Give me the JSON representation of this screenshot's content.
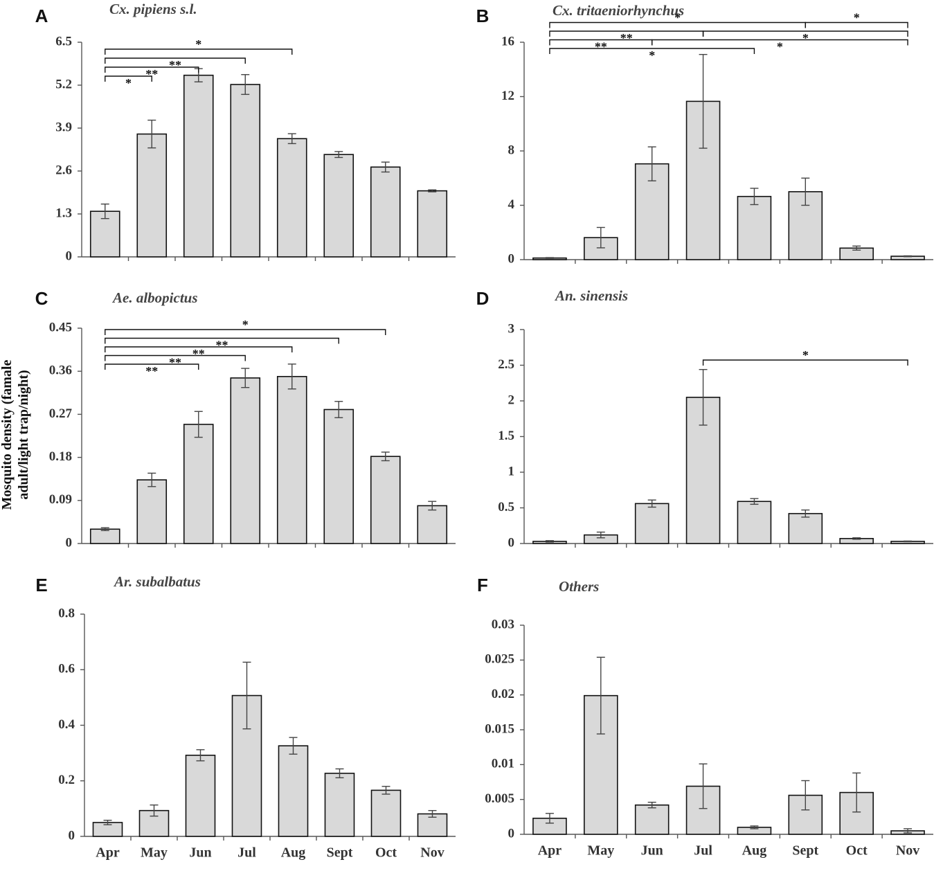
{
  "figure": {
    "y_axis_title_line1": "Mosquito density (famale",
    "y_axis_title_line2": "adult/light trap/night)"
  },
  "chart_data": [
    {
      "panel": "A",
      "title": "Cx. pipiens s.l.",
      "type": "bar",
      "categories": [
        "Apr",
        "May",
        "Jun",
        "Jul",
        "Aug",
        "Sept",
        "Oct",
        "Nov"
      ],
      "values": [
        1.38,
        3.72,
        5.5,
        5.22,
        3.58,
        3.1,
        2.72,
        2.0
      ],
      "errors": [
        0.22,
        0.42,
        0.2,
        0.3,
        0.15,
        0.09,
        0.15,
        0.03
      ],
      "yticks": [
        "0",
        "1.3",
        "2.6",
        "3.9",
        "5.2",
        "6.5"
      ],
      "ylim": [
        0,
        6.5
      ],
      "show_category_labels": false,
      "significance": [
        {
          "from": 0,
          "to": 1,
          "label": "*",
          "level": 0,
          "label_side": "below"
        },
        {
          "from": 0,
          "to": 2,
          "label": "**",
          "level": 1,
          "label_side": "below"
        },
        {
          "from": 0,
          "to": 3,
          "label": "**",
          "level": 2,
          "label_side": "below"
        },
        {
          "from": 0,
          "to": 4,
          "label": "*",
          "level": 3,
          "label_side": "above"
        }
      ]
    },
    {
      "panel": "B",
      "title": "Cx. tritaeniorhynchus",
      "type": "bar",
      "categories": [
        "Apr",
        "May",
        "Jun",
        "Jul",
        "Aug",
        "Sept",
        "Oct",
        "Nov"
      ],
      "values": [
        0.12,
        1.62,
        7.05,
        11.65,
        4.65,
        5.0,
        0.85,
        0.25
      ],
      "errors": [
        0.03,
        0.75,
        1.25,
        3.45,
        0.6,
        1.0,
        0.15,
        0.03
      ],
      "yticks": [
        "0",
        "4",
        "8",
        "12",
        "16"
      ],
      "ylim": [
        0,
        16
      ],
      "show_category_labels": false,
      "significance": [
        {
          "from": 0,
          "to": 4,
          "label": "*",
          "level": 0,
          "label_side": "below"
        },
        {
          "from": 0,
          "to": 2,
          "label": "**",
          "level": 1,
          "label_side": "below"
        },
        {
          "from": 2,
          "to": 7,
          "label": "*",
          "level": 1,
          "label_side": "below"
        },
        {
          "from": 0,
          "to": 3,
          "label": "**",
          "level": 2,
          "label_side": "below"
        },
        {
          "from": 3,
          "to": 7,
          "label": "*",
          "level": 2,
          "label_side": "below"
        },
        {
          "from": 0,
          "to": 5,
          "label": "*",
          "level": 3,
          "label_side": "above"
        },
        {
          "from": 5,
          "to": 7,
          "label": "*",
          "level": 3,
          "label_side": "above"
        }
      ]
    },
    {
      "panel": "C",
      "title": "Ae. albopictus",
      "type": "bar",
      "categories": [
        "Apr",
        "May",
        "Jun",
        "Jul",
        "Aug",
        "Sept",
        "Oct",
        "Nov"
      ],
      "values": [
        0.03,
        0.133,
        0.249,
        0.346,
        0.349,
        0.28,
        0.182,
        0.079
      ],
      "errors": [
        0.003,
        0.014,
        0.027,
        0.02,
        0.026,
        0.017,
        0.009,
        0.009
      ],
      "yticks": [
        "0",
        "0.09",
        "0.18",
        "0.27",
        "0.36",
        "0.45"
      ],
      "ylim": [
        0,
        0.45
      ],
      "show_category_labels": false,
      "significance": [
        {
          "from": 0,
          "to": 2,
          "label": "**",
          "level": 0,
          "label_side": "below"
        },
        {
          "from": 0,
          "to": 3,
          "label": "**",
          "level": 1,
          "label_side": "below"
        },
        {
          "from": 0,
          "to": 4,
          "label": "**",
          "level": 2,
          "label_side": "below"
        },
        {
          "from": 0,
          "to": 5,
          "label": "**",
          "level": 3,
          "label_side": "below"
        },
        {
          "from": 0,
          "to": 6,
          "label": "*",
          "level": 4,
          "label_side": "above"
        }
      ]
    },
    {
      "panel": "D",
      "title": "An. sinensis",
      "type": "bar",
      "categories": [
        "Apr",
        "May",
        "Jun",
        "Jul",
        "Aug",
        "Sept",
        "Oct",
        "Nov"
      ],
      "values": [
        0.03,
        0.12,
        0.56,
        2.05,
        0.59,
        0.42,
        0.07,
        0.03
      ],
      "errors": [
        0.01,
        0.04,
        0.05,
        0.39,
        0.04,
        0.05,
        0.01,
        0.005
      ],
      "yticks": [
        "0",
        "0.5",
        "1",
        "1.5",
        "2",
        "2.5",
        "3"
      ],
      "ylim": [
        0,
        3
      ],
      "show_category_labels": false,
      "significance": [
        {
          "from": 3,
          "to": 7,
          "label": "*",
          "level": 0,
          "label_side": "above"
        }
      ]
    },
    {
      "panel": "E",
      "title": "Ar. subalbatus",
      "type": "bar",
      "categories": [
        "Apr",
        "May",
        "Jun",
        "Jul",
        "Aug",
        "Sept",
        "Oct",
        "Nov"
      ],
      "values": [
        0.05,
        0.093,
        0.292,
        0.507,
        0.326,
        0.227,
        0.166,
        0.081
      ],
      "errors": [
        0.008,
        0.02,
        0.02,
        0.12,
        0.03,
        0.016,
        0.014,
        0.012
      ],
      "yticks": [
        "0",
        "0.2",
        "0.4",
        "0.6",
        "0.8"
      ],
      "ylim": [
        0,
        0.8
      ],
      "show_category_labels": true,
      "significance": []
    },
    {
      "panel": "F",
      "title": "Others",
      "type": "bar",
      "categories": [
        "Apr",
        "May",
        "Jun",
        "Jul",
        "Aug",
        "Sept",
        "Oct",
        "Nov"
      ],
      "values": [
        0.0023,
        0.0199,
        0.0042,
        0.0069,
        0.001,
        0.0056,
        0.006,
        0.0005
      ],
      "errors": [
        0.0007,
        0.0055,
        0.0004,
        0.0032,
        0.0002,
        0.0021,
        0.0028,
        0.0003
      ],
      "yticks": [
        "0",
        "0.005",
        "0.01",
        "0.015",
        "0.02",
        "0.025",
        "0.03"
      ],
      "ylim": [
        0,
        0.03
      ],
      "show_category_labels": true,
      "significance": []
    }
  ]
}
